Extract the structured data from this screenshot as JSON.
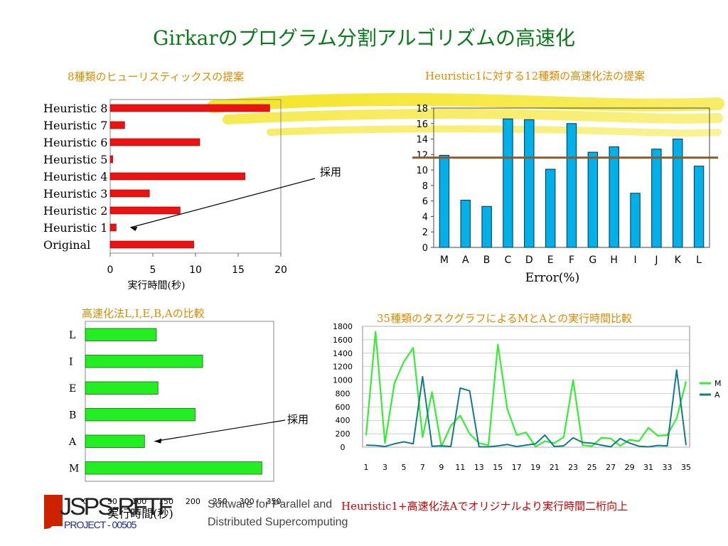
{
  "page": {
    "title": "Girkarのプログラム分割アルゴリズムの高速化",
    "footer": {
      "logo_main": "JSPS-RFTF",
      "logo_sub": "PROJECT - 00505",
      "tagline_line1": "Software for Parallel and",
      "tagline_line2": "Distributed Supercomputing",
      "conclusion": "Heuristic1+高速化法Aでオリジナルより実行時間二桁向上"
    },
    "colors": {
      "title": "#0a7a1a",
      "panel_title": "#e08a00",
      "red_bar": "#ee1111",
      "blue_bar": "#00b0e8",
      "green_bar": "#22ee22",
      "line_m": "#33ee33",
      "line_a": "#117a8a",
      "ref_line": "#8b5a2b",
      "highlighter": "#f2e000"
    }
  },
  "chart_data": [
    {
      "id": "heuristics",
      "type": "bar",
      "orientation": "horizontal",
      "title": "8種類のヒューリスティックスの提案",
      "xlabel": "実行時間(秒)",
      "categories": [
        "Heuristic 8",
        "Heuristic 7",
        "Heuristic 6",
        "Heuristic 5",
        "Heuristic 4",
        "Heuristic 3",
        "Heuristic 2",
        "Heuristic 1",
        "Original"
      ],
      "values": [
        18.7,
        1.7,
        10.5,
        0.3,
        15.8,
        4.6,
        8.2,
        0.7,
        9.8
      ],
      "xlim": [
        0,
        20
      ],
      "xticks": [
        "0",
        "5",
        "10",
        "15",
        "20"
      ],
      "annotation": "採用",
      "annotation_target": "Heuristic 1"
    },
    {
      "id": "speedup12",
      "type": "bar",
      "title": "Heuristic1に対する12種類の高速化法の提案",
      "xlabel": "Error(%)",
      "categories": [
        "M",
        "A",
        "B",
        "C",
        "D",
        "E",
        "F",
        "G",
        "H",
        "I",
        "J",
        "K",
        "L"
      ],
      "values": [
        11.9,
        6.1,
        5.3,
        16.6,
        16.5,
        10.1,
        16.0,
        12.3,
        13.0,
        7.0,
        12.7,
        14.0,
        10.5
      ],
      "ylim": [
        0,
        18
      ],
      "yticks": [
        "0",
        "2",
        "4",
        "6",
        "8",
        "10",
        "12",
        "14",
        "16",
        "18"
      ],
      "reference_line": 11.6,
      "grid": false
    },
    {
      "id": "compare",
      "type": "bar",
      "orientation": "horizontal",
      "title": "高速化法L,I,E,B,Aの比較",
      "xlabel": "実行時間(秒)",
      "categories": [
        "L",
        "I",
        "E",
        "B",
        "A",
        "M"
      ],
      "values": [
        132,
        218,
        135,
        204,
        110,
        328
      ],
      "xlim": [
        0,
        350
      ],
      "xticks": [
        "0",
        "50",
        "100",
        "150",
        "200",
        "250",
        "300",
        "350"
      ],
      "annotation": "採用",
      "annotation_target": "A"
    },
    {
      "id": "taskgraphs",
      "type": "line",
      "title": "35種類のタスクグラフによるMとAとの実行時間比較",
      "x": [
        1,
        2,
        3,
        4,
        5,
        6,
        7,
        8,
        9,
        10,
        11,
        12,
        13,
        14,
        15,
        16,
        17,
        18,
        19,
        20,
        21,
        22,
        23,
        24,
        25,
        26,
        27,
        28,
        29,
        30,
        31,
        32,
        33,
        34,
        35
      ],
      "xticks": [
        "1",
        "3",
        "5",
        "7",
        "9",
        "11",
        "13",
        "15",
        "17",
        "19",
        "21",
        "23",
        "25",
        "27",
        "29",
        "31",
        "33",
        "35"
      ],
      "ylim": [
        0,
        1800
      ],
      "yticks": [
        "0",
        "200",
        "400",
        "600",
        "800",
        "1000",
        "1200",
        "1400",
        "1600",
        "1800"
      ],
      "legend_position": "right",
      "series": [
        {
          "name": "M",
          "values": [
            180,
            1720,
            60,
            950,
            1270,
            1480,
            150,
            820,
            10,
            320,
            470,
            200,
            60,
            30,
            1530,
            570,
            180,
            220,
            5,
            90,
            60,
            150,
            1000,
            30,
            15,
            140,
            130,
            20,
            110,
            90,
            290,
            170,
            180,
            430,
            980
          ]
        },
        {
          "name": "A",
          "values": [
            30,
            25,
            10,
            50,
            80,
            50,
            1050,
            15,
            20,
            10,
            880,
            840,
            5,
            5,
            20,
            40,
            10,
            30,
            50,
            180,
            10,
            20,
            140,
            70,
            60,
            30,
            5,
            130,
            60,
            15,
            5,
            25,
            20,
            1150,
            30
          ]
        }
      ]
    }
  ]
}
